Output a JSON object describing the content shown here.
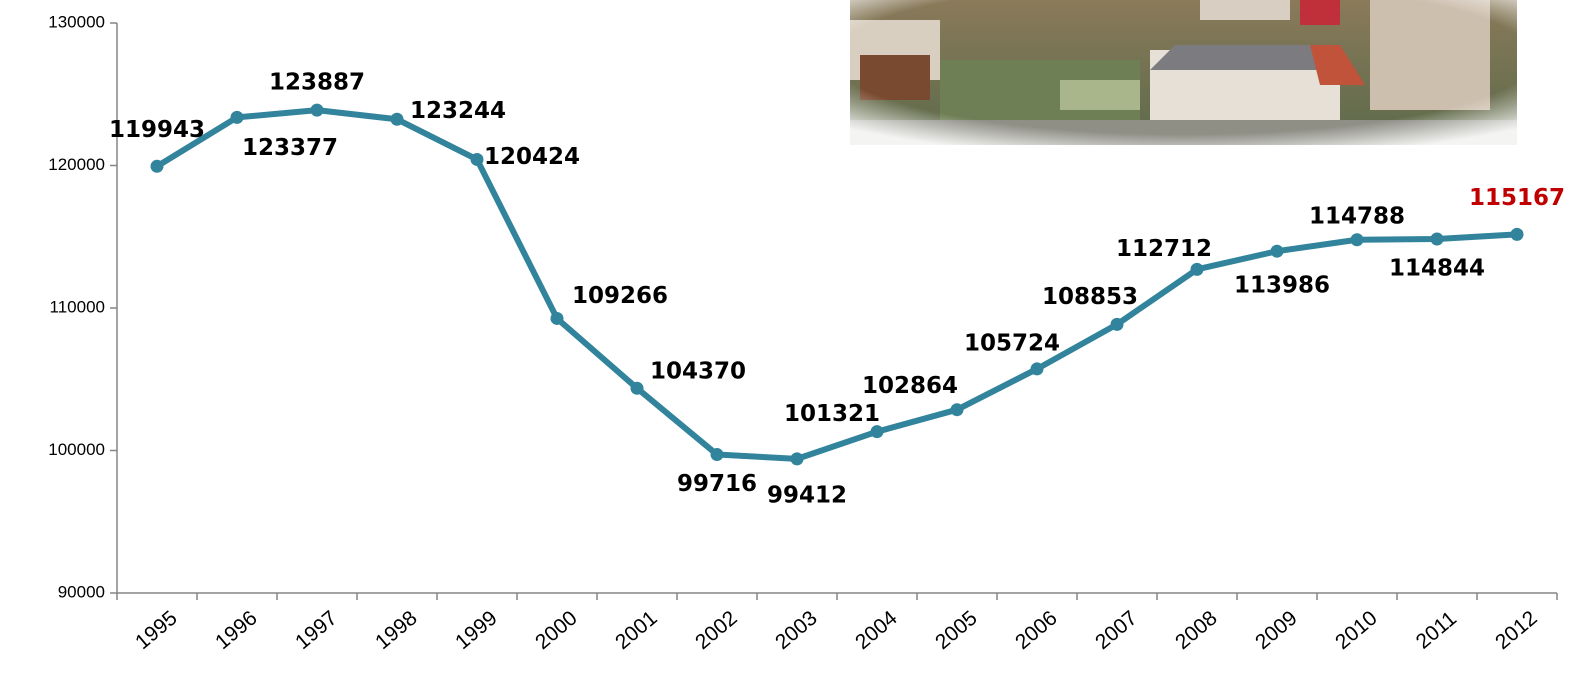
{
  "chart_data": {
    "type": "line",
    "categories": [
      "1995",
      "1996",
      "1997",
      "1998",
      "1999",
      "2000",
      "2001",
      "2002",
      "2003",
      "2004",
      "2005",
      "2006",
      "2007",
      "2008",
      "2009",
      "2010",
      "2011",
      "2012"
    ],
    "series": [
      {
        "color": "#31849b",
        "values": [
          119943,
          123377,
          123887,
          123244,
          120424,
          109266,
          104370,
          99716,
          99412,
          101321,
          102864,
          105724,
          108853,
          112712,
          113986,
          114788,
          114844,
          115167
        ],
        "value_label_colors": [
          "#000000",
          "#000000",
          "#000000",
          "#000000",
          "#000000",
          "#000000",
          "#000000",
          "#000000",
          "#000000",
          "#000000",
          "#000000",
          "#000000",
          "#000000",
          "#000000",
          "#000000",
          "#000000",
          "#000000",
          "#c00000"
        ]
      }
    ],
    "ylim": [
      90000,
      130000
    ],
    "yticks": [
      90000,
      100000,
      110000,
      120000,
      130000
    ],
    "grid": false
  }
}
